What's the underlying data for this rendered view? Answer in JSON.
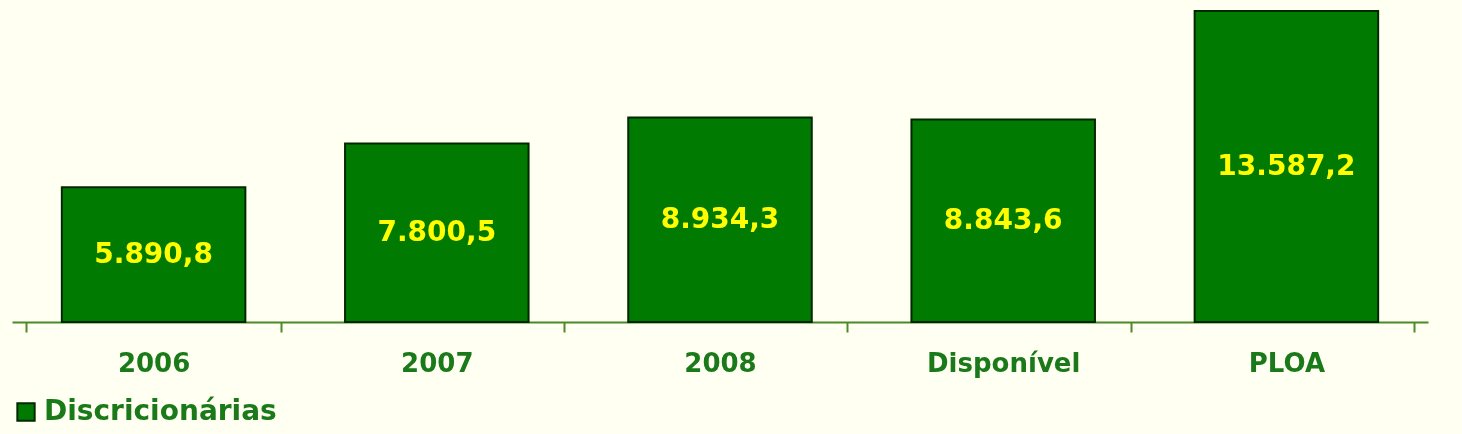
{
  "chart_data": {
    "type": "bar",
    "categories": [
      "2006",
      "2007",
      "2008",
      "Disponível",
      "PLOA"
    ],
    "series": [
      {
        "name": "Discricionárias",
        "color": "#007a00",
        "values": [
          5890.8,
          7800.5,
          8934.3,
          8843.6,
          13587.2
        ],
        "value_labels": [
          "5.890,8",
          "7.800,5",
          "8.934,3",
          "8.843,6",
          "13.587,2"
        ]
      }
    ],
    "legend": "bottom",
    "grid": false
  }
}
